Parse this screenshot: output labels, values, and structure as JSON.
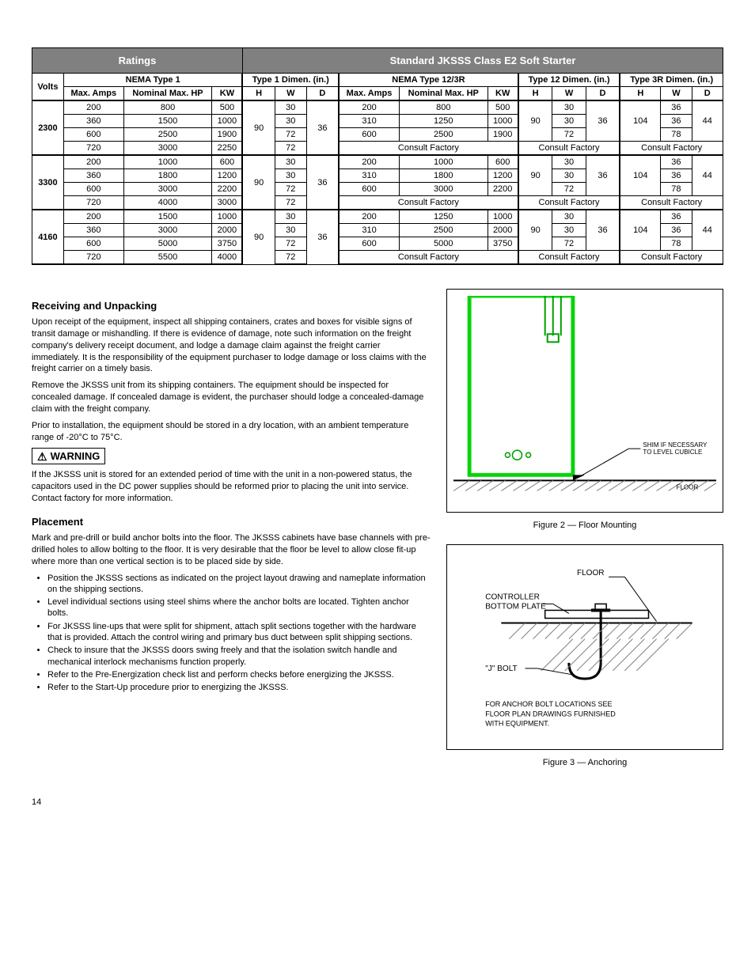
{
  "table": {
    "header_ratings": "Ratings",
    "header_starter": "Standard JKSSS Class E2 Soft Starter",
    "sub_nema1": "NEMA Type 1",
    "sub_t1dim": "Type 1 Dimen. (in.)",
    "sub_nema12": "NEMA Type 12/3R",
    "sub_t12dim": "Type 12 Dimen. (in.)",
    "sub_t3rdim": "Type 3R Dimen. (in.)",
    "col_volts": "Volts",
    "col_amps": "Max. Amps",
    "col_hp": "Nominal Max. HP",
    "col_kw": "KW",
    "col_H": "H",
    "col_W": "W",
    "col_D": "D",
    "consult": "Consult Factory",
    "blocks": [
      {
        "volts": "2300",
        "rows": [
          {
            "a": "200",
            "hp": "800",
            "kw": "500",
            "w": "30",
            "a2": "200",
            "hp2": "800",
            "kw2": "500",
            "w12": "30",
            "w3r": "36"
          },
          {
            "a": "360",
            "hp": "1500",
            "kw": "1000",
            "w": "30",
            "a2": "310",
            "hp2": "1250",
            "kw2": "1000",
            "w12": "30",
            "w3r": "36"
          },
          {
            "a": "600",
            "hp": "2500",
            "kw": "1900",
            "w": "72",
            "a2": "600",
            "hp2": "2500",
            "kw2": "1900",
            "w12": "72",
            "w3r": "78"
          },
          {
            "a": "720",
            "hp": "3000",
            "kw": "2250",
            "w": "72"
          }
        ],
        "h": "90",
        "d": "36",
        "h12": "90",
        "d12": "36",
        "h3r": "104",
        "d3r": "44"
      },
      {
        "volts": "3300",
        "rows": [
          {
            "a": "200",
            "hp": "1000",
            "kw": "600",
            "w": "30",
            "a2": "200",
            "hp2": "1000",
            "kw2": "600",
            "w12": "30",
            "w3r": "36"
          },
          {
            "a": "360",
            "hp": "1800",
            "kw": "1200",
            "w": "30",
            "a2": "310",
            "hp2": "1800",
            "kw2": "1200",
            "w12": "30",
            "w3r": "36"
          },
          {
            "a": "600",
            "hp": "3000",
            "kw": "2200",
            "w": "72",
            "a2": "600",
            "hp2": "3000",
            "kw2": "2200",
            "w12": "72",
            "w3r": "78"
          },
          {
            "a": "720",
            "hp": "4000",
            "kw": "3000",
            "w": "72"
          }
        ],
        "h": "90",
        "d": "36",
        "h12": "90",
        "d12": "36",
        "h3r": "104",
        "d3r": "44"
      },
      {
        "volts": "4160",
        "rows": [
          {
            "a": "200",
            "hp": "1500",
            "kw": "1000",
            "w": "30",
            "a2": "200",
            "hp2": "1250",
            "kw2": "1000",
            "w12": "30",
            "w3r": "36"
          },
          {
            "a": "360",
            "hp": "3000",
            "kw": "2000",
            "w": "30",
            "a2": "310",
            "hp2": "2500",
            "kw2": "2000",
            "w12": "30",
            "w3r": "36"
          },
          {
            "a": "600",
            "hp": "5000",
            "kw": "3750",
            "w": "72",
            "a2": "600",
            "hp2": "5000",
            "kw2": "3750",
            "w12": "72",
            "w3r": "78"
          },
          {
            "a": "720",
            "hp": "5500",
            "kw": "4000",
            "w": "72"
          }
        ],
        "h": "90",
        "d": "36",
        "h12": "90",
        "d12": "36",
        "h3r": "104",
        "d3r": "44"
      }
    ]
  },
  "sections": {
    "receiving_title": "Receiving and Unpacking",
    "receiving_p1": "Upon receipt of the equipment, inspect all shipping containers, crates and boxes for visible signs of transit damage or mishandling. If there is evidence of damage, note such information on the freight company's delivery receipt document, and lodge a damage claim against the freight carrier immediately. It is the responsibility of the equipment purchaser to lodge damage or loss claims with the freight carrier on a timely basis.",
    "receiving_p2": "Remove the JKSSS unit from its shipping containers. The equipment should be inspected for concealed damage. If concealed damage is evident, the purchaser should lodge a concealed-damage claim with the freight company.",
    "receiving_p3": "Prior to installation, the equipment should be stored in a dry location, with an ambient temperature range of -20°C to 75°C.",
    "warning_label": "WARNING",
    "warning_text": "If the JKSSS unit is stored for an extended period of time with the unit in a non-powered status, the capacitors used in the DC power supplies should be reformed prior to placing the unit into service.  Contact factory for more information.",
    "placement_title": "Placement",
    "placement_p1": "Mark and pre-drill or build anchor bolts into the floor. The JKSSS cabinets have base channels with pre-drilled holes to allow bolting to the floor. It is very desirable that the floor be level to allow close fit-up where more than one vertical section is to be placed side by side.",
    "placement_li1": "Position the JKSSS sections as indicated on the project layout drawing and nameplate information on the shipping sections.",
    "placement_li2": "Level individual sections using steel shims where the anchor bolts are located. Tighten anchor bolts.",
    "placement_li3": "For JKSSS line-ups that were split for shipment, attach split sections together with the hardware that is provided. Attach the control wiring and primary bus duct between split shipping sections.",
    "placement_li4": "Check to insure that the JKSSS doors swing freely and that the isolation switch handle and mechanical interlock mechanisms function properly.",
    "placement_li5": "Refer to the Pre-Energization check list and perform checks before energizing the JKSSS.",
    "placement_li6": "Refer to the Start-Up procedure prior to energizing the JKSSS."
  },
  "figures": {
    "fig2_shim": "SHIM IF NECESSARY TO LEVEL CUBICLE",
    "fig2_floor": "FLOOR",
    "fig2_caption": "Figure 2 — Floor Mounting",
    "fig3_floor": "FLOOR",
    "fig3_plate": "CONTROLLER BOTTOM PLATE",
    "fig3_jbolt": "\"J\" BOLT",
    "fig3_note": "FOR ANCHOR BOLT LOCATIONS SEE FLOOR PLAN DRAWINGS FURNISHED WITH EQUIPMENT.",
    "fig3_caption": "Figure 3 — Anchoring"
  },
  "page_num": "14",
  "colors": {
    "header_bg": "#808080",
    "header_fg": "#ffffff",
    "border": "#000000",
    "diagram_green": "#00d000",
    "diagram_green_dark": "#00a000",
    "hatch": "#808080"
  }
}
